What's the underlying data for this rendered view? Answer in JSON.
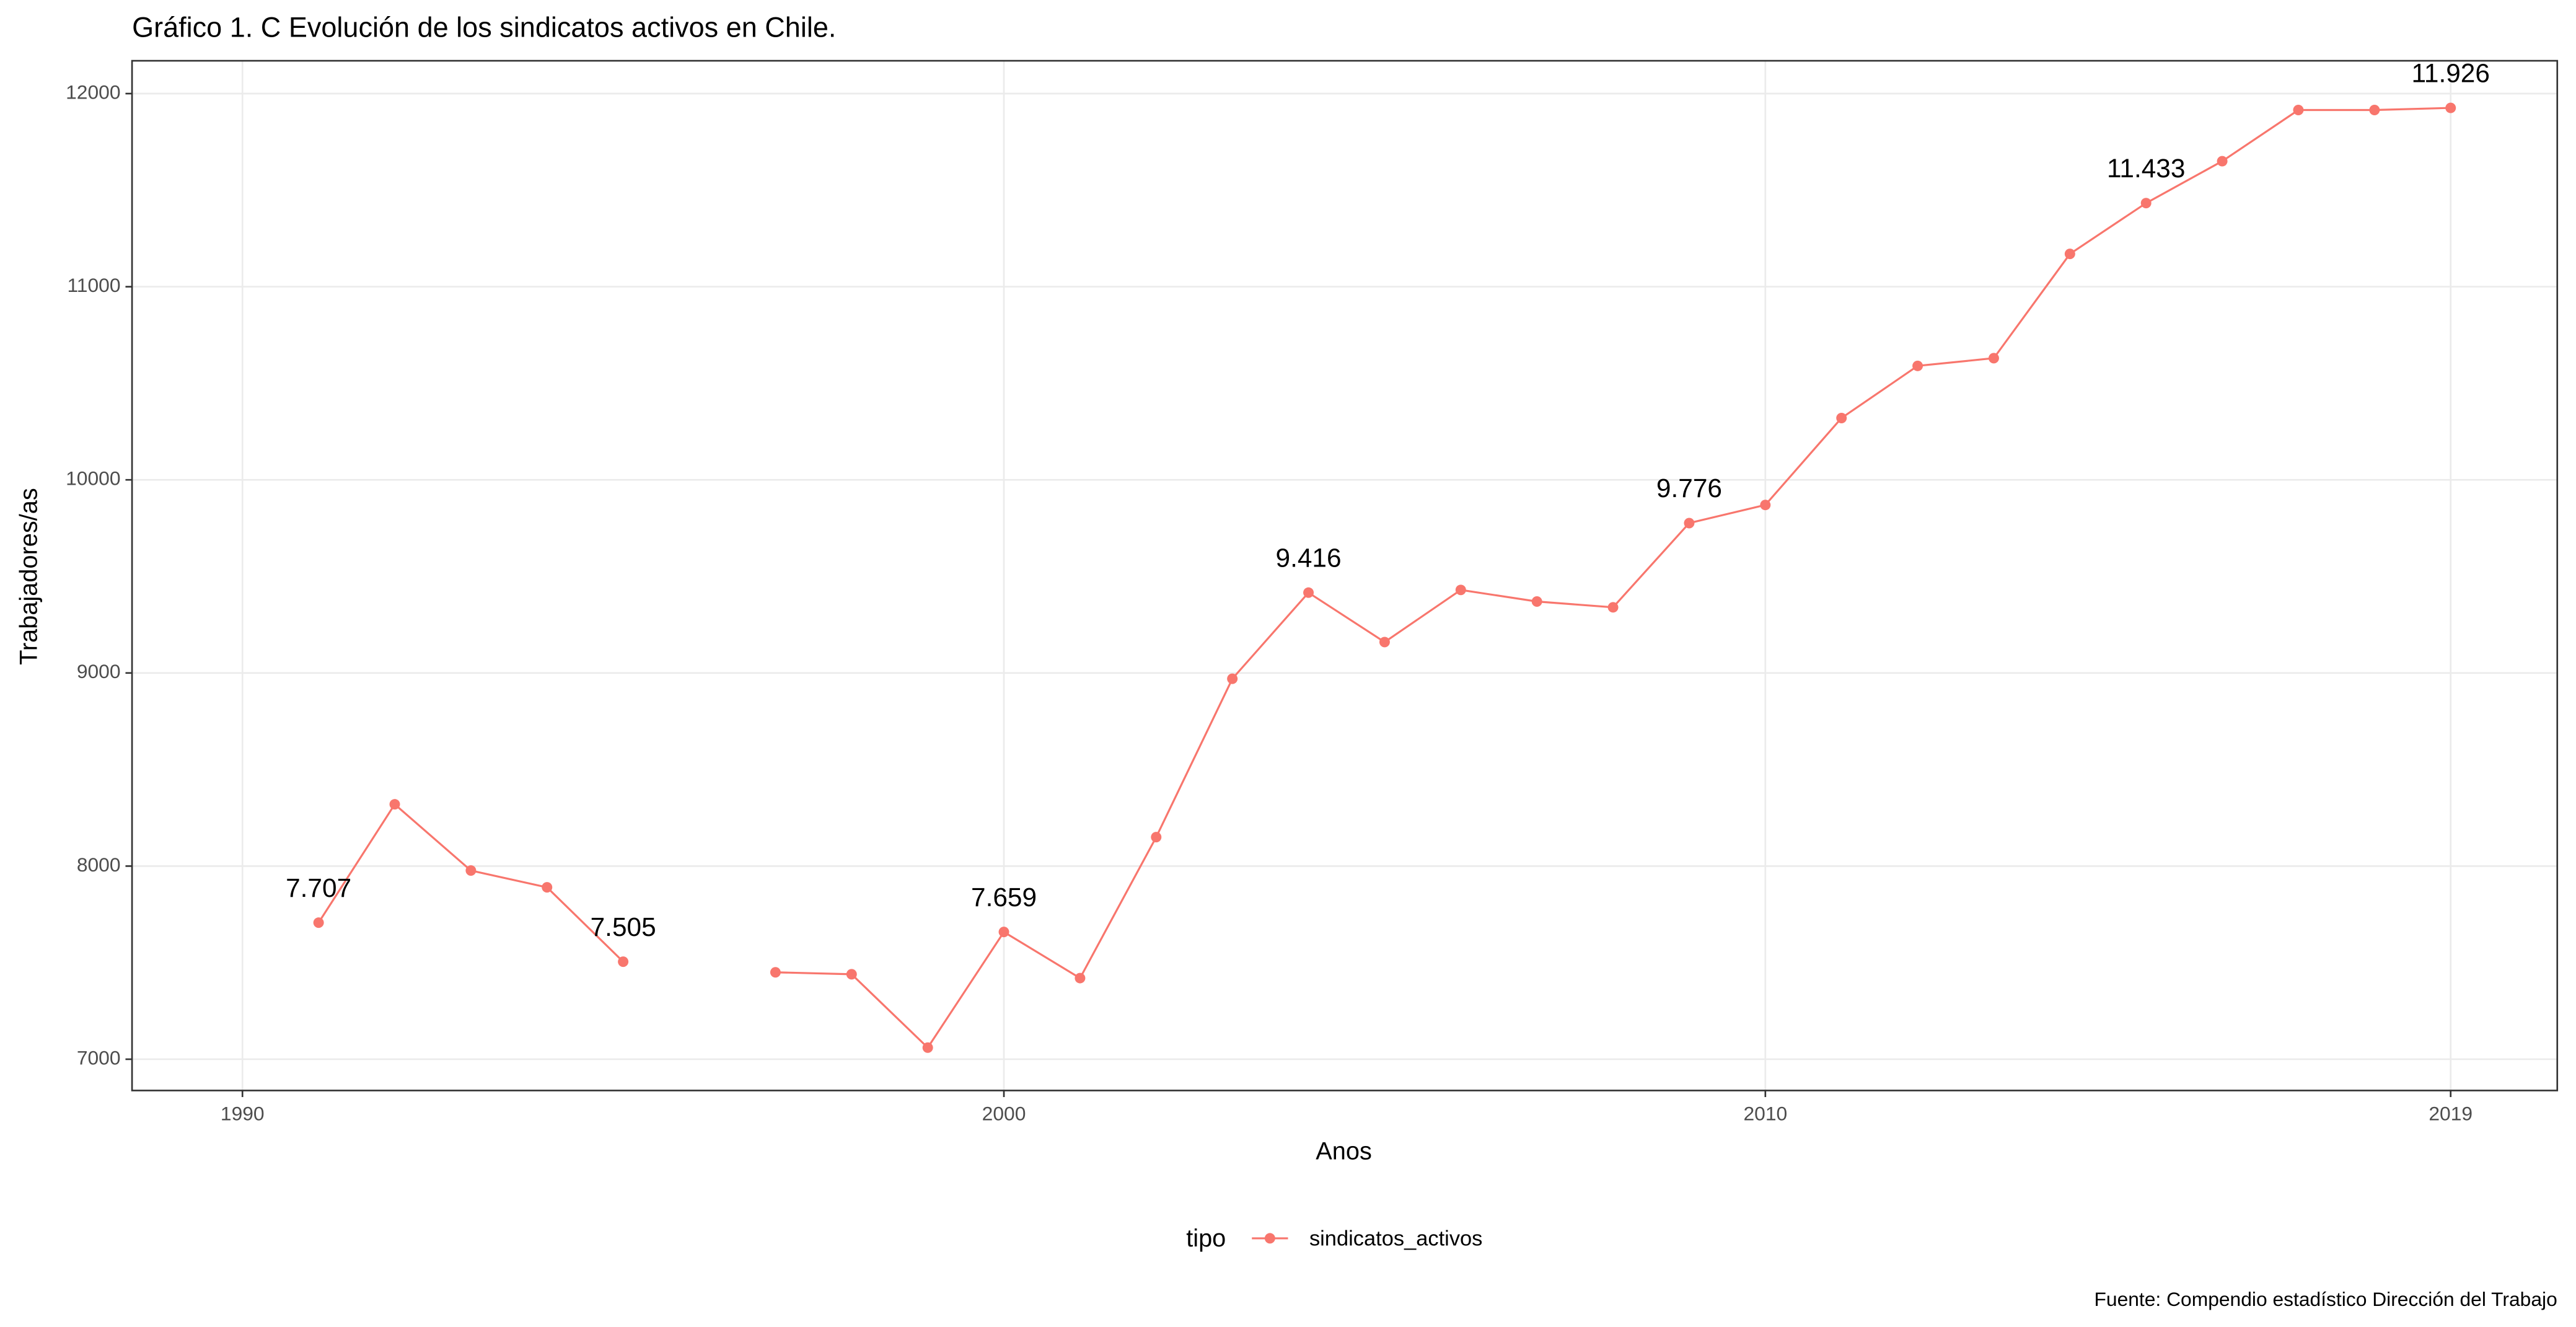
{
  "chart_data": {
    "type": "line",
    "title": "Gráfico 1. C Evolución de los sindicatos activos en Chile.",
    "x_label": "Anos",
    "y_label": "Trabajadores/as",
    "legend_title": "tipo",
    "caption": "Fuente: Compendio estadístico Dirección del Trabajo",
    "x": [
      1991,
      1992,
      1993,
      1994,
      1995,
      1996,
      1997,
      1998,
      1999,
      2000,
      2001,
      2002,
      2003,
      2004,
      2005,
      2006,
      2007,
      2008,
      2009,
      2010,
      2011,
      2012,
      2013,
      2014,
      2015,
      2016,
      2017,
      2018,
      2019
    ],
    "series": [
      {
        "name": "sindicatos_activos",
        "color": "#F8766D",
        "values": [
          7707,
          8320,
          7977,
          7890,
          7505,
          null,
          7450,
          7440,
          7060,
          7659,
          7420,
          8150,
          8970,
          9416,
          9160,
          9430,
          9370,
          9340,
          9776,
          9870,
          10320,
          10590,
          10630,
          11170,
          11433,
          11650,
          11915,
          11915,
          11926
        ],
        "value_labels": [
          "7.707",
          null,
          null,
          null,
          "7.505",
          null,
          null,
          null,
          null,
          "7.659",
          null,
          null,
          null,
          "9.416",
          null,
          null,
          null,
          null,
          "9.776",
          null,
          null,
          null,
          null,
          null,
          "11.433",
          null,
          null,
          null,
          "11.926"
        ]
      }
    ],
    "xlim": [
      1988.55,
      2020.4
    ],
    "ylim": [
      6838,
      12170
    ],
    "xticks": [
      1990,
      2000,
      2010,
      2019
    ],
    "yticks": [
      7000,
      8000,
      9000,
      10000,
      11000,
      12000
    ],
    "grid": true,
    "legend_position": "bottom"
  }
}
